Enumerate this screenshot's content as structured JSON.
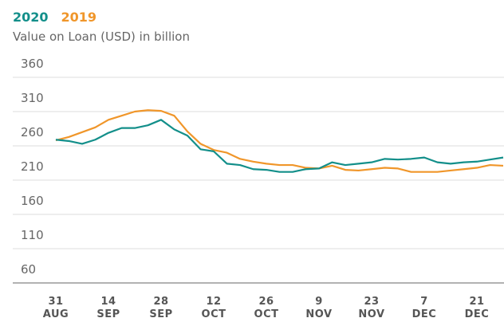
{
  "chart_data": {
    "type": "line",
    "subtitle": "Value on Loan (USD) in billion",
    "categories": [
      "31 AUG",
      null,
      null,
      null,
      "14 SEP",
      null,
      null,
      null,
      "28 SEP",
      null,
      null,
      null,
      "12 OCT",
      null,
      null,
      null,
      "26 OCT",
      null,
      null,
      null,
      "9 NOV",
      null,
      null,
      null,
      "23 NOV",
      null,
      null,
      null,
      "7 DEC",
      null,
      null,
      null,
      "21 DEC",
      null,
      null
    ],
    "series": [
      {
        "name": "2020",
        "color": "#138f8a",
        "values": [
          269,
          267,
          263,
          269,
          279,
          286,
          286,
          290,
          298,
          284,
          275,
          255,
          252,
          234,
          232,
          226,
          225,
          222,
          222,
          226,
          227,
          236,
          232,
          234,
          236,
          241,
          240,
          241,
          243,
          236,
          234,
          236,
          237,
          240,
          243
        ]
      },
      {
        "name": "2019",
        "color": "#f0962a",
        "values": [
          268,
          273,
          280,
          287,
          298,
          304,
          310,
          312,
          311,
          304,
          281,
          263,
          254,
          250,
          241,
          237,
          234,
          232,
          232,
          228,
          227,
          231,
          225,
          224,
          226,
          228,
          227,
          222,
          222,
          222,
          224,
          226,
          228,
          232,
          231
        ]
      }
    ],
    "ylim": [
      60,
      360
    ],
    "yticks": [
      60,
      110,
      160,
      210,
      260,
      310,
      360
    ],
    "grid": true
  }
}
